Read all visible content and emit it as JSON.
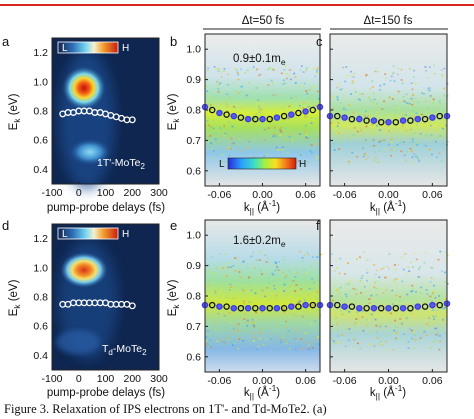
{
  "figure": {
    "column_titles": [
      "Δt=50 fs",
      "Δt=150 fs"
    ],
    "caption_fragment": "Figure 3. Relaxation of IPS electrons on 1T'- and Td-MoTe2. (a)",
    "colors": {
      "caption_rule": "#d9251c",
      "marker_dark": "#111111",
      "marker_blue": "#3b3be0"
    }
  },
  "panels": [
    {
      "id": "a",
      "label": "a",
      "colorbar": {
        "low": "L",
        "high": "H"
      },
      "sample_label_main": "1T'-MoTe",
      "sample_label_sub": "2",
      "xlabel": "pump-probe delays (fs)",
      "ylabel_main": "E",
      "ylabel_sub": "k",
      "ylabel_unit": " (eV)",
      "xticks": [
        "-100",
        "0",
        "100",
        "200",
        "300"
      ],
      "yticks": [
        "0.4",
        "0.6",
        "0.8",
        "1.0",
        "1.2"
      ]
    },
    {
      "id": "b",
      "label": "b",
      "annotation": "0.9±0.1m",
      "annotation_sub": "e",
      "colorbar": {
        "low": "L",
        "high": "H"
      },
      "xlabel_main": "k",
      "xlabel_sub": "||",
      "xlabel_unit": " (Å",
      "xlabel_sup": "-1",
      "xlabel_end": ")",
      "ylabel_main": "E",
      "ylabel_sub": "k",
      "ylabel_unit": " (eV)",
      "xticks": [
        "-0.06",
        "0.00",
        "0.06"
      ],
      "yticks": [
        "0.6",
        "0.7",
        "0.8",
        "0.9",
        "1.0"
      ]
    },
    {
      "id": "c",
      "label": "c",
      "xlabel_main": "k",
      "xlabel_sub": "||",
      "xlabel_unit": " (Å",
      "xlabel_sup": "-1",
      "xlabel_end": ")",
      "ylabel_main": "E",
      "ylabel_sub": "k",
      "ylabel_unit": " (eV)",
      "xticks": [
        "-0.06",
        "0.00",
        "0.06"
      ],
      "yticks": [
        "0.6",
        "0.7",
        "0.8",
        "0.9",
        "1.0"
      ]
    },
    {
      "id": "d",
      "label": "d",
      "colorbar": {
        "low": "L",
        "high": "H"
      },
      "sample_label_main": "T",
      "sample_label_sub": "d",
      "sample_label_rest": "-MoTe",
      "sample_label_sub2": "2",
      "xlabel": "pump-probe delays (fs)",
      "ylabel_main": "E",
      "ylabel_sub": "k",
      "ylabel_unit": " (eV)",
      "xticks": [
        "-100",
        "0",
        "100",
        "200",
        "300"
      ],
      "yticks": [
        "0.4",
        "0.6",
        "0.8",
        "1.0",
        "1.2"
      ]
    },
    {
      "id": "e",
      "label": "e",
      "annotation": "1.6±0.2m",
      "annotation_sub": "e",
      "xlabel_main": "k",
      "xlabel_sub": "||",
      "xlabel_unit": " (Å",
      "xlabel_sup": "-1",
      "xlabel_end": ")",
      "ylabel_main": "E",
      "ylabel_sub": "k",
      "ylabel_unit": " (eV)",
      "xticks": [
        "-0.06",
        "0.00",
        "0.06"
      ],
      "yticks": [
        "0.6",
        "0.7",
        "0.8",
        "0.9",
        "1.0"
      ]
    },
    {
      "id": "f",
      "label": "f",
      "xlabel_main": "k",
      "xlabel_sub": "||",
      "xlabel_unit": " (Å",
      "xlabel_sup": "-1",
      "xlabel_end": ")",
      "ylabel_main": "E",
      "ylabel_sub": "k",
      "ylabel_unit": " (eV)",
      "xticks": [
        "-0.06",
        "0.00",
        "0.06"
      ],
      "yticks": [
        "0.6",
        "0.7",
        "0.8",
        "0.9",
        "1.0"
      ]
    }
  ],
  "chart_data": [
    {
      "panel": "a",
      "type": "scatter",
      "xlim": [
        -100,
        300
      ],
      "ylim": [
        0.3,
        1.3
      ],
      "x": [
        -60,
        -40,
        -20,
        0,
        20,
        40,
        60,
        80,
        100,
        120,
        140,
        160,
        180,
        200
      ],
      "y": [
        0.78,
        0.79,
        0.79,
        0.8,
        0.8,
        0.8,
        0.79,
        0.79,
        0.78,
        0.77,
        0.76,
        0.75,
        0.74,
        0.74
      ]
    },
    {
      "panel": "b",
      "type": "scatter",
      "xlim": [
        -0.08,
        0.08
      ],
      "ylim": [
        0.55,
        1.05
      ],
      "x": [
        -0.08,
        -0.07,
        -0.06,
        -0.05,
        -0.04,
        -0.03,
        -0.02,
        -0.01,
        0.0,
        0.01,
        0.02,
        0.03,
        0.04,
        0.05,
        0.06,
        0.07,
        0.08
      ],
      "y": [
        0.81,
        0.8,
        0.79,
        0.785,
        0.78,
        0.775,
        0.77,
        0.77,
        0.77,
        0.77,
        0.775,
        0.78,
        0.785,
        0.79,
        0.795,
        0.8,
        0.81
      ]
    },
    {
      "panel": "c",
      "type": "scatter",
      "xlim": [
        -0.08,
        0.08
      ],
      "ylim": [
        0.55,
        1.05
      ],
      "x": [
        -0.08,
        -0.07,
        -0.06,
        -0.05,
        -0.04,
        -0.03,
        -0.02,
        -0.01,
        0.0,
        0.01,
        0.02,
        0.03,
        0.04,
        0.05,
        0.06,
        0.07,
        0.08
      ],
      "y": [
        0.78,
        0.78,
        0.775,
        0.77,
        0.77,
        0.765,
        0.765,
        0.76,
        0.76,
        0.76,
        0.765,
        0.765,
        0.77,
        0.77,
        0.775,
        0.78,
        0.78
      ]
    },
    {
      "panel": "d",
      "type": "scatter",
      "xlim": [
        -100,
        300
      ],
      "ylim": [
        0.3,
        1.3
      ],
      "x": [
        -60,
        -40,
        -20,
        0,
        20,
        40,
        60,
        80,
        100,
        120,
        140,
        160,
        180,
        200
      ],
      "y": [
        0.75,
        0.75,
        0.76,
        0.76,
        0.76,
        0.76,
        0.76,
        0.76,
        0.76,
        0.75,
        0.75,
        0.75,
        0.75,
        0.74
      ]
    },
    {
      "panel": "e",
      "type": "scatter",
      "xlim": [
        -0.08,
        0.08
      ],
      "ylim": [
        0.55,
        1.05
      ],
      "x": [
        -0.08,
        -0.07,
        -0.06,
        -0.05,
        -0.04,
        -0.03,
        -0.02,
        -0.01,
        0.0,
        0.01,
        0.02,
        0.03,
        0.04,
        0.05,
        0.06,
        0.07,
        0.08
      ],
      "y": [
        0.77,
        0.77,
        0.765,
        0.765,
        0.76,
        0.76,
        0.76,
        0.76,
        0.76,
        0.76,
        0.76,
        0.76,
        0.765,
        0.765,
        0.77,
        0.77,
        0.77
      ]
    },
    {
      "panel": "f",
      "type": "scatter",
      "xlim": [
        -0.08,
        0.08
      ],
      "ylim": [
        0.55,
        1.05
      ],
      "x": [
        -0.08,
        -0.07,
        -0.06,
        -0.05,
        -0.04,
        -0.03,
        -0.02,
        -0.01,
        0.0,
        0.01,
        0.02,
        0.03,
        0.04,
        0.05,
        0.06,
        0.07,
        0.08
      ],
      "y": [
        0.77,
        0.77,
        0.765,
        0.765,
        0.76,
        0.76,
        0.76,
        0.76,
        0.76,
        0.76,
        0.76,
        0.76,
        0.765,
        0.765,
        0.77,
        0.77,
        0.775
      ]
    }
  ]
}
